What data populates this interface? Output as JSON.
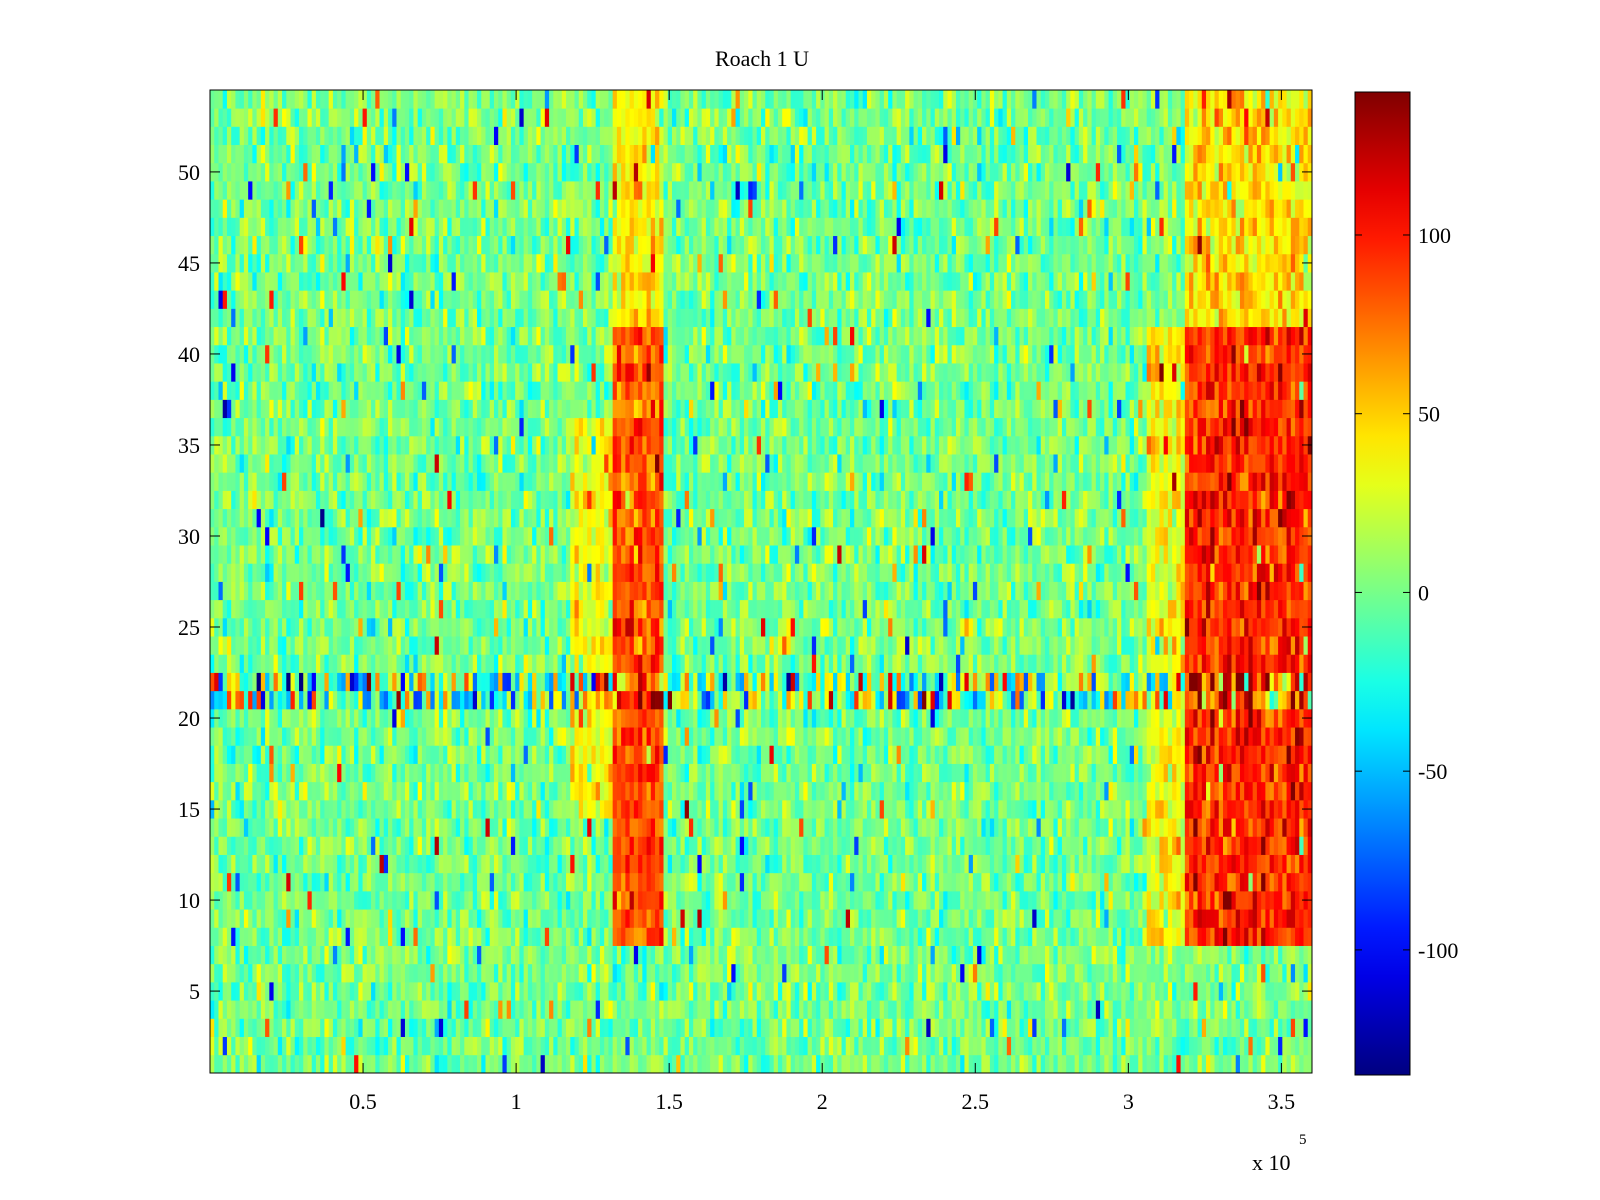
{
  "chart_data": {
    "type": "heatmap",
    "title": "Roach 1 U",
    "xlabel": "",
    "ylabel": "",
    "x_range": [
      0,
      360000
    ],
    "y_range": [
      0.5,
      54.5
    ],
    "x_ticks": [
      50000,
      100000,
      150000,
      200000,
      250000,
      300000,
      350000
    ],
    "x_tick_labels": [
      "0.5",
      "1",
      "1.5",
      "2",
      "2.5",
      "3",
      "3.5"
    ],
    "x_exponent_label": "x 10",
    "x_exponent_power": "5",
    "y_ticks": [
      5,
      10,
      15,
      20,
      25,
      30,
      35,
      40,
      45,
      50
    ],
    "y_tick_labels": [
      "5",
      "10",
      "15",
      "20",
      "25",
      "30",
      "35",
      "40",
      "45",
      "50"
    ],
    "rows": 54,
    "colormap": "jet",
    "color_range": [
      -135,
      140
    ],
    "colorbar_ticks": [
      100,
      50,
      0,
      -50,
      -100
    ],
    "colorbar_tick_labels": [
      "100",
      "50",
      "0",
      "-50",
      "-100"
    ],
    "baseline_value": 0,
    "hot_bands": [
      {
        "x_start": 132000,
        "x_end": 148000,
        "y_start": 8,
        "y_end": 41,
        "peak_value": 85
      },
      {
        "x_start": 318000,
        "x_end": 360000,
        "y_start": 8,
        "y_end": 41,
        "peak_value": 95
      }
    ],
    "warm_halos": [
      {
        "x_start": 118000,
        "x_end": 132000,
        "y_start": 15,
        "y_end": 36,
        "value": 35
      },
      {
        "x_start": 306000,
        "x_end": 318000,
        "y_start": 8,
        "y_end": 41,
        "value": 35
      },
      {
        "x_start": 132000,
        "x_end": 148000,
        "y_start": 41,
        "y_end": 54.5,
        "value": 40
      },
      {
        "x_start": 318000,
        "x_end": 360000,
        "y_start": 41,
        "y_end": 54.5,
        "value": 45
      }
    ],
    "noisy_rows": [
      21,
      22
    ]
  }
}
